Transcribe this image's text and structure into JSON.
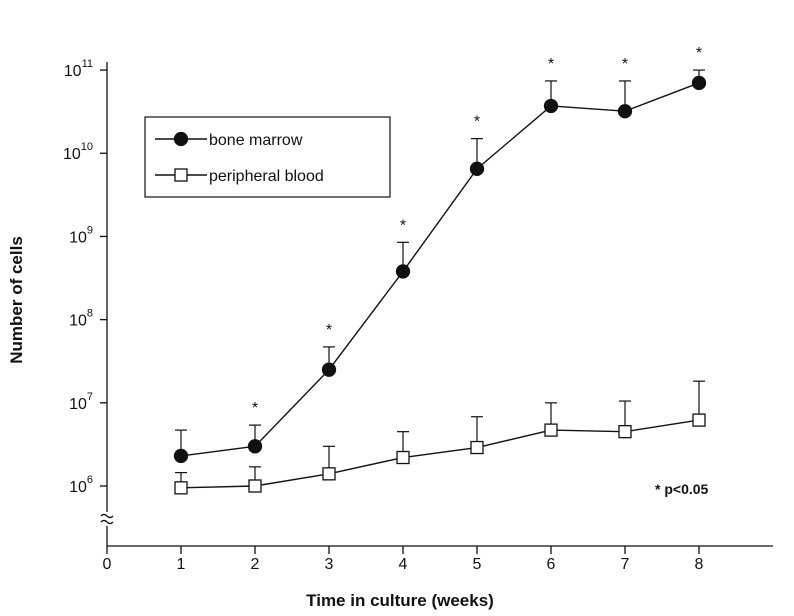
{
  "chart_data": {
    "type": "line",
    "x_label": "Time in culture (weeks)",
    "y_label": "Number of cells",
    "xlim": [
      0,
      9
    ],
    "xticks": [
      0,
      1,
      2,
      3,
      4,
      5,
      6,
      7,
      8
    ],
    "ylim": [
      190000,
      125000000000
    ],
    "log_y": true,
    "yticks": [
      {
        "value": 1000000,
        "label": "10",
        "exponent": "6"
      },
      {
        "value": 10000000,
        "label": "10",
        "exponent": "7"
      },
      {
        "value": 100000000,
        "label": "10",
        "exponent": "8"
      },
      {
        "value": 1000000000,
        "label": "10",
        "exponent": "9"
      },
      {
        "value": 10000000000,
        "label": "10",
        "exponent": "10"
      },
      {
        "value": 100000000000,
        "label": "10",
        "exponent": "11"
      }
    ],
    "legend_position": "upper left",
    "x": [
      1,
      2,
      3,
      4,
      5,
      6,
      7,
      8
    ],
    "series": [
      {
        "name": "bone marrow",
        "color": "#111111",
        "marker": "circle",
        "filled": true,
        "values": [
          2300000,
          3000000,
          25000000,
          380000000,
          6500000000,
          37000000000,
          32000000000,
          70000000000
        ],
        "errors": [
          2400000,
          2400000,
          22000000,
          470000000,
          8500000000,
          37000000000,
          42000000000,
          30000000000
        ]
      },
      {
        "name": "peripheral blood",
        "color": "#111111",
        "marker": "square",
        "filled": false,
        "values": [
          950000,
          1000000,
          1400000,
          2200000,
          2900000,
          4700000,
          4500000,
          6200000
        ],
        "errors": [
          500000,
          700000,
          1600000,
          2300000,
          3900000,
          5300000,
          6000000,
          12000000
        ]
      }
    ],
    "annotations": [
      {
        "text": "*",
        "x": 2
      },
      {
        "text": "*",
        "x": 3
      },
      {
        "text": "*",
        "x": 4
      },
      {
        "text": "*",
        "x": 5
      },
      {
        "text": "*",
        "x": 6
      },
      {
        "text": "*",
        "x": 7
      },
      {
        "text": "*",
        "x": 8
      }
    ],
    "note": "* p<0.05"
  }
}
